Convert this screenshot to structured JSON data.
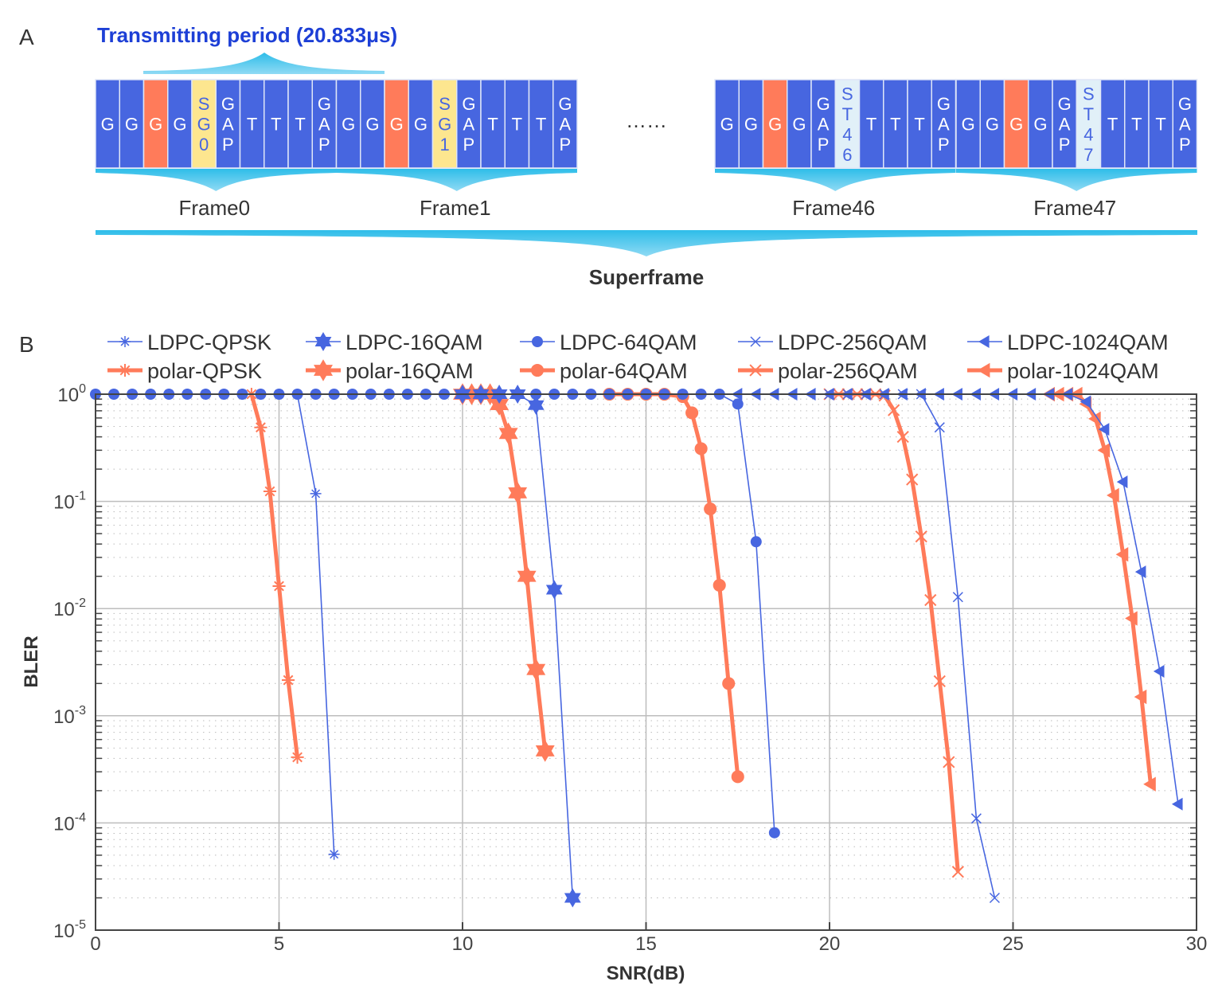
{
  "panel_a": {
    "label": "A",
    "title": "Transmitting period (20.833μs)",
    "ellipsis": "……",
    "superframe_label": "Superframe",
    "colors": {
      "blue": "#4766e0",
      "orange": "#ff7b5a",
      "yellow": "#fde68f",
      "lightblue": "#e1f0f8",
      "brace": "#2ebde9"
    },
    "frames": [
      {
        "label": "Frame0",
        "cells": [
          {
            "t": "G",
            "c": "blue"
          },
          {
            "t": "G",
            "c": "blue"
          },
          {
            "t": "G",
            "c": "orange"
          },
          {
            "t": "G",
            "c": "blue"
          },
          {
            "t": "SG0",
            "c": "yellow"
          },
          {
            "t": "GAP",
            "c": "blue"
          },
          {
            "t": "T",
            "c": "blue"
          },
          {
            "t": "T",
            "c": "blue"
          },
          {
            "t": "T",
            "c": "blue"
          },
          {
            "t": "GAP",
            "c": "blue"
          }
        ]
      },
      {
        "label": "Frame1",
        "cells": [
          {
            "t": "G",
            "c": "blue"
          },
          {
            "t": "G",
            "c": "blue"
          },
          {
            "t": "G",
            "c": "orange"
          },
          {
            "t": "G",
            "c": "blue"
          },
          {
            "t": "SG1",
            "c": "yellow"
          },
          {
            "t": "GAP",
            "c": "blue"
          },
          {
            "t": "T",
            "c": "blue"
          },
          {
            "t": "T",
            "c": "blue"
          },
          {
            "t": "T",
            "c": "blue"
          },
          {
            "t": "GAP",
            "c": "blue"
          }
        ]
      },
      {
        "label": "Frame46",
        "cells": [
          {
            "t": "G",
            "c": "blue"
          },
          {
            "t": "G",
            "c": "blue"
          },
          {
            "t": "G",
            "c": "orange"
          },
          {
            "t": "G",
            "c": "blue"
          },
          {
            "t": "GAP",
            "c": "blue"
          },
          {
            "t": "ST46",
            "c": "lightblue"
          },
          {
            "t": "T",
            "c": "blue"
          },
          {
            "t": "T",
            "c": "blue"
          },
          {
            "t": "T",
            "c": "blue"
          },
          {
            "t": "GAP",
            "c": "blue"
          }
        ]
      },
      {
        "label": "Frame47",
        "cells": [
          {
            "t": "G",
            "c": "blue"
          },
          {
            "t": "G",
            "c": "blue"
          },
          {
            "t": "G",
            "c": "orange"
          },
          {
            "t": "G",
            "c": "blue"
          },
          {
            "t": "GAP",
            "c": "blue"
          },
          {
            "t": "ST47",
            "c": "lightblue"
          },
          {
            "t": "T",
            "c": "blue"
          },
          {
            "t": "T",
            "c": "blue"
          },
          {
            "t": "T",
            "c": "blue"
          },
          {
            "t": "GAP",
            "c": "blue"
          }
        ]
      }
    ]
  },
  "panel_b": {
    "label": "B"
  },
  "chart_data": {
    "type": "line",
    "xlabel": "SNR(dB)",
    "ylabel": "BLER",
    "xlim": [
      0,
      30
    ],
    "ylim": [
      1e-05,
      1
    ],
    "yscale": "log",
    "xticks": [
      "0",
      "5",
      "10",
      "15",
      "20",
      "25",
      "30"
    ],
    "yticks": [
      {
        "base": "10",
        "exp": "0"
      },
      {
        "base": "10",
        "exp": "-1"
      },
      {
        "base": "10",
        "exp": "-2"
      },
      {
        "base": "10",
        "exp": "-3"
      },
      {
        "base": "10",
        "exp": "-4"
      },
      {
        "base": "10",
        "exp": "-5"
      }
    ],
    "grid": true,
    "legend_position": "top",
    "colors": {
      "LDPC": "#4766e0",
      "polar": "#ff7b5a"
    },
    "series": [
      {
        "name": "LDPC-QPSK",
        "marker": "asterisk",
        "color": "#4766e0",
        "style": "thin",
        "x": [
          0,
          0.5,
          1,
          1.5,
          2,
          2.5,
          3,
          3.5,
          4,
          4.5,
          5,
          5.5,
          6,
          6.5
        ],
        "y": [
          1,
          1,
          1,
          1,
          1,
          1,
          1,
          1,
          1,
          1,
          1,
          1,
          0.118,
          5.1e-05
        ]
      },
      {
        "name": "LDPC-16QAM",
        "marker": "hexagram",
        "color": "#4766e0",
        "style": "thin",
        "x": [
          10,
          10.5,
          11,
          11.5,
          12,
          12.5,
          13
        ],
        "y": [
          1,
          1,
          1,
          1,
          0.79,
          0.015,
          2e-05
        ]
      },
      {
        "name": "LDPC-64QAM",
        "marker": "circle",
        "color": "#4766e0",
        "style": "thin",
        "x": [
          0,
          0.5,
          1,
          1.5,
          2,
          2.5,
          3,
          3.5,
          4,
          4.5,
          5,
          5.5,
          6,
          6.5,
          7,
          7.5,
          8,
          8.5,
          9,
          9.5,
          10,
          10.5,
          11,
          11.5,
          12,
          12.5,
          13,
          13.5,
          14,
          14.5,
          15,
          15.5,
          16,
          16.5,
          17,
          17.5,
          18,
          18.5
        ],
        "y": [
          1,
          1,
          1,
          1,
          1,
          1,
          1,
          1,
          1,
          1,
          1,
          1,
          1,
          1,
          1,
          1,
          1,
          1,
          1,
          1,
          1,
          1,
          1,
          1,
          1,
          1,
          1,
          1,
          1,
          1,
          1,
          1,
          1,
          1,
          1,
          0.81,
          0.042,
          8.1e-05
        ]
      },
      {
        "name": "LDPC-256QAM",
        "marker": "x",
        "color": "#4766e0",
        "style": "thin",
        "x": [
          20,
          20.5,
          21,
          21.5,
          22,
          22.5,
          23,
          23.5,
          24,
          24.5
        ],
        "y": [
          1,
          1,
          1,
          1,
          1,
          1,
          0.49,
          0.0128,
          0.00011,
          2e-05
        ]
      },
      {
        "name": "LDPC-1024QAM",
        "marker": "triangle-left",
        "color": "#4766e0",
        "style": "thin",
        "x": [
          17.5,
          18,
          18.5,
          19,
          19.5,
          20,
          20.5,
          21,
          21.5,
          22,
          22.5,
          23,
          23.5,
          24,
          24.5,
          25,
          25.5,
          26,
          26.5,
          27,
          27.5,
          28,
          28.5,
          29,
          29.5
        ],
        "y": [
          1,
          1,
          1,
          1,
          1,
          1,
          1,
          1,
          1,
          1,
          1,
          1,
          1,
          1,
          1,
          1,
          1,
          1,
          1,
          0.85,
          0.47,
          0.152,
          0.022,
          0.0026,
          0.00015
        ]
      },
      {
        "name": "polar-QPSK",
        "marker": "asterisk",
        "color": "#ff7b5a",
        "style": "thick",
        "x": [
          4.25,
          4.5,
          4.75,
          5,
          5.25,
          5.5
        ],
        "y": [
          1,
          0.49,
          0.124,
          0.0162,
          0.00215,
          0.00041
        ]
      },
      {
        "name": "polar-16QAM",
        "marker": "hexagram",
        "color": "#ff7b5a",
        "style": "thick",
        "x": [
          10,
          10.25,
          10.5,
          10.75,
          11,
          11.25,
          11.5,
          11.75,
          12,
          12.25
        ],
        "y": [
          1,
          1,
          1,
          1,
          0.8,
          0.43,
          0.12,
          0.02,
          0.0027,
          0.00047
        ]
      },
      {
        "name": "polar-64QAM",
        "marker": "circle",
        "color": "#ff7b5a",
        "style": "thick",
        "x": [
          14,
          14.5,
          15,
          15.5,
          16,
          16.25,
          16.5,
          16.75,
          17,
          17.25,
          17.5
        ],
        "y": [
          1,
          1,
          1,
          1,
          0.95,
          0.67,
          0.31,
          0.085,
          0.0165,
          0.002,
          0.00027
        ]
      },
      {
        "name": "polar-256QAM",
        "marker": "x",
        "color": "#ff7b5a",
        "style": "thick",
        "x": [
          20,
          20.25,
          20.5,
          20.75,
          21,
          21.25,
          21.5,
          21.75,
          22,
          22.25,
          22.5,
          22.75,
          23,
          23.25,
          23.5
        ],
        "y": [
          1,
          1,
          1,
          1,
          1,
          1,
          0.97,
          0.71,
          0.4,
          0.16,
          0.047,
          0.012,
          0.0021,
          0.00037,
          3.5e-05
        ]
      },
      {
        "name": "polar-1024QAM",
        "marker": "triangle-left",
        "color": "#ff7b5a",
        "style": "thick",
        "x": [
          26,
          26.25,
          26.5,
          26.75,
          27,
          27.25,
          27.5,
          27.75,
          28,
          28.25,
          28.5,
          28.75
        ],
        "y": [
          1,
          1,
          1,
          1,
          0.81,
          0.59,
          0.3,
          0.114,
          0.032,
          0.0081,
          0.0015,
          0.00023
        ]
      }
    ]
  }
}
